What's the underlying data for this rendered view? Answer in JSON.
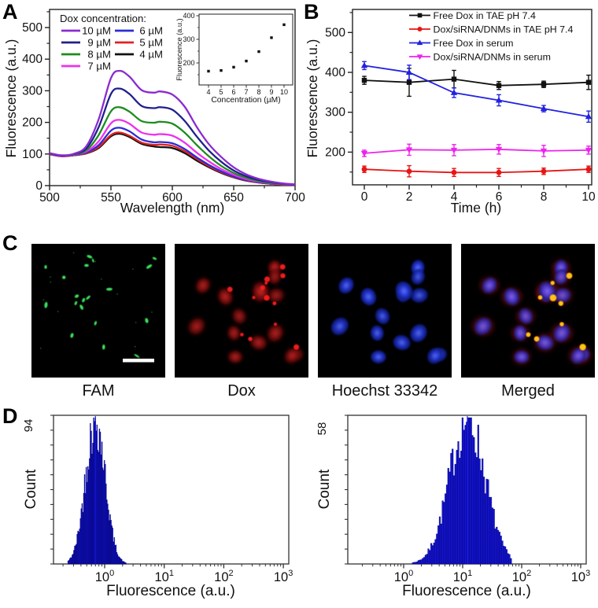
{
  "chart_data": [
    {
      "id": "panel_a_spectra",
      "panel_letter": "A",
      "type": "line",
      "xlabel": "Wavelength (nm)",
      "ylabel": "Fluorescence (a.u.)",
      "xlim": [
        500,
        700
      ],
      "ylim": [
        0,
        557
      ],
      "xticks": [
        500,
        550,
        600,
        650,
        700
      ],
      "yticks": [
        0,
        100,
        200,
        300,
        400,
        500
      ],
      "legend_title": "Dox concentration:",
      "legend_columns": [
        [
          0,
          1,
          2,
          3
        ],
        [
          4,
          5,
          6
        ]
      ],
      "x": [
        500,
        510,
        520,
        530,
        540,
        550,
        557,
        565,
        575,
        585,
        590,
        600,
        610,
        620,
        630,
        640,
        650,
        660,
        670,
        680,
        690,
        700
      ],
      "series": [
        {
          "name": "10 µM",
          "color": "#8A2BD0",
          "values": [
            103,
            96,
            101,
            125,
            210,
            340,
            363,
            345,
            302,
            294,
            298,
            288,
            250,
            185,
            130,
            90,
            58,
            36,
            22,
            13,
            7,
            4
          ]
        },
        {
          "name": "9 µM",
          "color": "#20208C",
          "values": [
            102,
            95,
            100,
            118,
            185,
            290,
            307,
            290,
            252,
            245,
            248,
            240,
            205,
            155,
            110,
            75,
            48,
            30,
            18,
            11,
            6,
            3
          ]
        },
        {
          "name": "8 µM",
          "color": "#1E8C1E",
          "values": [
            101,
            95,
            99,
            112,
            160,
            235,
            248,
            234,
            204,
            199,
            202,
            196,
            168,
            128,
            92,
            62,
            40,
            25,
            15,
            9,
            5,
            3
          ]
        },
        {
          "name": "7 µM",
          "color": "#EE30EE",
          "values": [
            100,
            94,
            98,
            108,
            140,
            197,
            208,
            196,
            168,
            161,
            163,
            158,
            136,
            104,
            76,
            52,
            34,
            21,
            13,
            8,
            4,
            2
          ]
        },
        {
          "name": "6 µM",
          "color": "#2B2BD6",
          "values": [
            100,
            94,
            97,
            105,
            128,
            174,
            183,
            172,
            146,
            137,
            138,
            134,
            116,
            89,
            65,
            45,
            29,
            18,
            11,
            7,
            4,
            2
          ]
        },
        {
          "name": "5 µM",
          "color": "#E02222",
          "values": [
            99,
            93,
            96,
            103,
            122,
            160,
            168,
            158,
            136,
            129,
            130,
            126,
            109,
            84,
            61,
            42,
            27,
            17,
            10,
            6,
            3,
            2
          ]
        },
        {
          "name": "4 µM",
          "color": "#111111",
          "values": [
            99,
            93,
            96,
            102,
            119,
            156,
            164,
            154,
            132,
            124,
            122,
            119,
            103,
            79,
            58,
            40,
            26,
            16,
            10,
            6,
            3,
            2
          ]
        }
      ]
    },
    {
      "id": "panel_a_inset",
      "type": "scatter",
      "xlabel": "Concentration (µM)",
      "ylabel": "Fluorescence (a.u.)",
      "xticks": [
        4,
        5,
        6,
        7,
        8,
        9,
        10
      ],
      "yticks": [
        200,
        300,
        400
      ],
      "ylim": [
        107,
        400
      ],
      "marker_color": "#111111",
      "points": [
        [
          4,
          165
        ],
        [
          5,
          168
        ],
        [
          6,
          182
        ],
        [
          7,
          208
        ],
        [
          8,
          248
        ],
        [
          9,
          307
        ],
        [
          10,
          362
        ]
      ]
    },
    {
      "id": "panel_b_stability",
      "panel_letter": "B",
      "type": "line",
      "xlabel": "Time (h)",
      "ylabel": "Fluorescence (a.u.)",
      "x": [
        0,
        2,
        4,
        6,
        8,
        10
      ],
      "xticks": [
        0,
        2,
        4,
        6,
        8,
        10
      ],
      "yticks": [
        200,
        300,
        400,
        500
      ],
      "ylim": [
        118,
        558
      ],
      "series": [
        {
          "name": "Free Dox in TAE pH 7.4",
          "color": "#111111",
          "marker": "square",
          "values": [
            380,
            375,
            383,
            367,
            370,
            375
          ],
          "errors": [
            10,
            35,
            22,
            10,
            8,
            18
          ]
        },
        {
          "name": "Dox/siRNA/DNMs in TAE pH 7.4",
          "color": "#E81515",
          "marker": "circle",
          "values": [
            157,
            152,
            149,
            149,
            152,
            157
          ],
          "errors": [
            8,
            14,
            10,
            10,
            8,
            8
          ]
        },
        {
          "name": "Free Dox in serum",
          "color": "#2222E0",
          "marker": "triangle-up",
          "values": [
            417,
            400,
            349,
            330,
            309,
            289
          ],
          "errors": [
            10,
            18,
            12,
            14,
            8,
            14
          ]
        },
        {
          "name": "Dox/siRNA/DNMs in serum",
          "color": "#EE22EE",
          "marker": "triangle-down",
          "values": [
            197,
            206,
            205,
            207,
            203,
            205
          ],
          "errors": [
            8,
            14,
            14,
            12,
            14,
            10
          ]
        }
      ]
    },
    {
      "id": "panel_d_left",
      "panel_letter": "D",
      "type": "histogram",
      "xlabel": "Fluorescence (a.u.)",
      "ylabel": "Count",
      "ymax_label": "94",
      "x_scale": "log10",
      "xtick_exponents": [
        0,
        1,
        2,
        3
      ],
      "peak_fluorescence": 0.7,
      "peak_log10": -0.155,
      "sigma_log10": 0.165,
      "span_log10": [
        -0.62,
        0.46
      ],
      "bar_color": "#1717DD",
      "seed": 42
    },
    {
      "id": "panel_d_right",
      "type": "histogram",
      "xlabel": "Fluorescence (a.u.)",
      "ylabel": "Count",
      "ymax_label": "58",
      "x_scale": "log10",
      "xtick_exponents": [
        0,
        1,
        2,
        3
      ],
      "peak_fluorescence": 12,
      "peak_log10": 1.08,
      "sigma_log10": 0.3,
      "span_log10": [
        -0.05,
        1.83
      ],
      "bar_color": "#1717DD",
      "seed": 7
    }
  ],
  "panel_c": {
    "panel_letter": "C",
    "images": [
      {
        "label": "FAM",
        "channel_color": "#3BE05A",
        "has_scale_bar": true
      },
      {
        "label": "Dox",
        "channel_color": "#C01010",
        "has_scale_bar": false
      },
      {
        "label": "Hoechst 33342",
        "channel_color": "#2738D8",
        "has_scale_bar": false
      },
      {
        "label": "Merged",
        "channel_color": "#FFC419",
        "has_scale_bar": false
      }
    ],
    "scale_bar_color": "#FFFFFF"
  }
}
